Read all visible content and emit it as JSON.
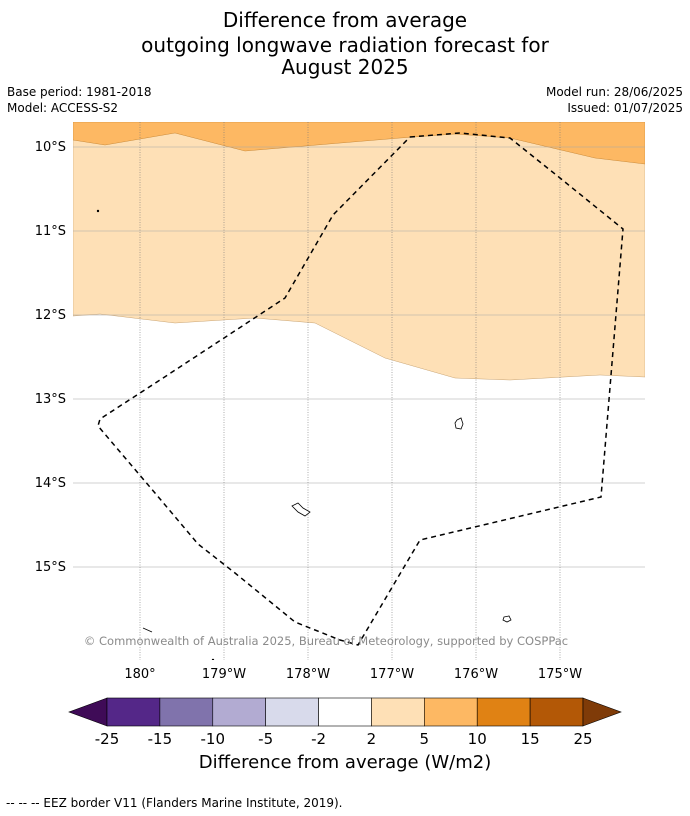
{
  "title": {
    "line1": "Difference from average",
    "line2": "outgoing longwave radiation forecast for",
    "line3": "August 2025"
  },
  "meta": {
    "base_period": "Base period: 1981-2018",
    "model": "Model: ACCESS-S2",
    "model_run": "Model run: 28/06/2025",
    "issued": "Issued: 01/07/2025"
  },
  "map": {
    "lat_labels": [
      "10°S",
      "11°S",
      "12°S",
      "13°S",
      "14°S",
      "15°S"
    ],
    "lon_labels": [
      "180°",
      "179°W",
      "178°W",
      "177°W",
      "176°W",
      "175°W"
    ],
    "copyright": "© Commonwealth of Australia 2025, Bureau of Meteorology, supported by COSPPac",
    "colors": {
      "orange_band": "#fdb863",
      "light_orange_band": "#fee0b6",
      "eez_line": "#000000"
    }
  },
  "colorbar": {
    "tick_labels": [
      "-25",
      "-15",
      "-10",
      "-5",
      "-2",
      "2",
      "5",
      "10",
      "15",
      "25"
    ],
    "colors": [
      "#3f0b57",
      "#542788",
      "#8073ac",
      "#b2abd2",
      "#d8daeb",
      "#ffffff",
      "#fee0b6",
      "#fdb863",
      "#e08214",
      "#b35806",
      "#7f3b08"
    ],
    "label": "Difference from average (W/m2)"
  },
  "footer": {
    "legend": "--  --  -- EEZ border V11 (Flanders Marine Institute, 2019)."
  }
}
